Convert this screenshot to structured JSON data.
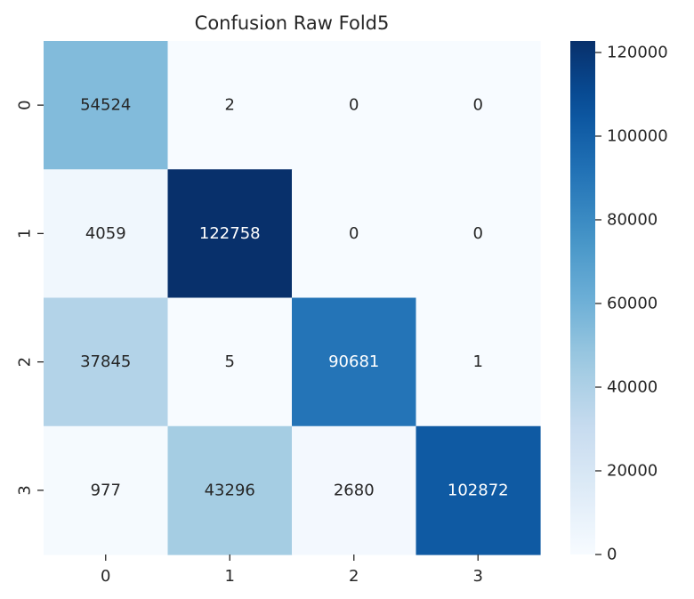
{
  "chart_data": {
    "type": "heatmap",
    "title": "Confusion Raw Fold5",
    "x_tick_labels": [
      "0",
      "1",
      "2",
      "3"
    ],
    "y_tick_labels": [
      "0",
      "1",
      "2",
      "3"
    ],
    "matrix": [
      [
        54524,
        2,
        0,
        0
      ],
      [
        4059,
        122758,
        0,
        0
      ],
      [
        37845,
        5,
        90681,
        1
      ],
      [
        977,
        43296,
        2680,
        102872
      ]
    ],
    "colormap": "Blues",
    "value_range": [
      0,
      122758
    ],
    "colorbar": {
      "ticks": [
        0,
        20000,
        40000,
        60000,
        80000,
        100000,
        120000
      ],
      "tick_labels": [
        "0",
        "20000",
        "40000",
        "60000",
        "80000",
        "100000",
        "120000"
      ]
    },
    "colors": {
      "low": "#f7fbff",
      "high": "#08306b",
      "text_dark": "#262626",
      "text_light": "#ffffff"
    }
  }
}
